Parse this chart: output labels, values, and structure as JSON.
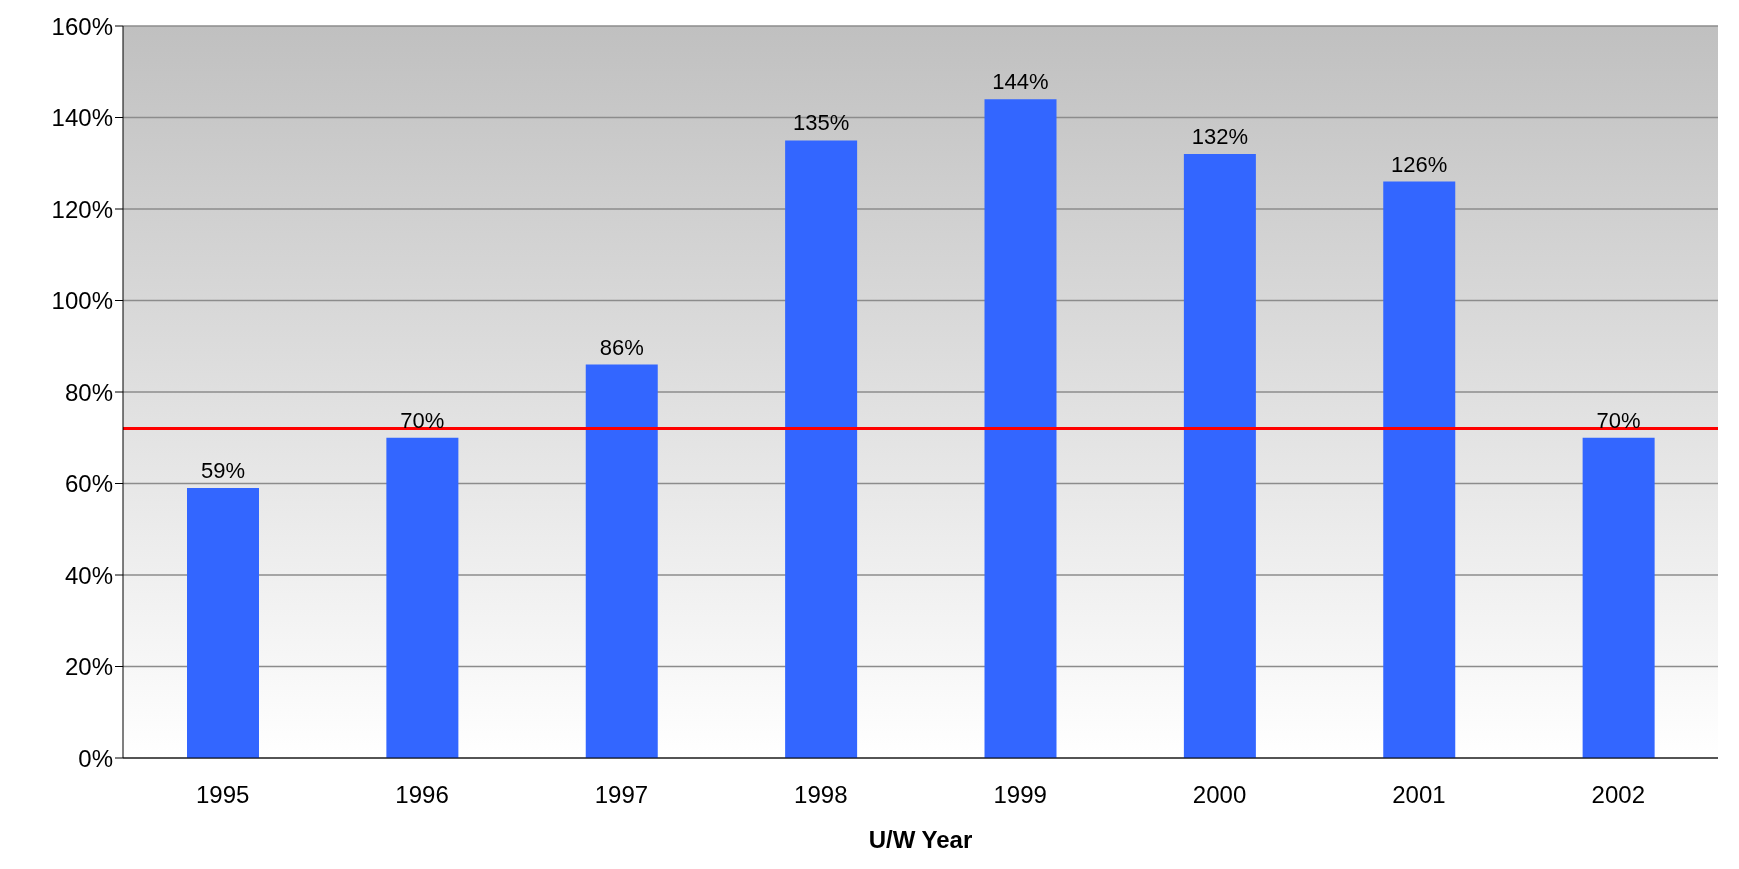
{
  "chart_data": {
    "type": "bar",
    "xlabel": "U/W Year",
    "categories": [
      "1995",
      "1996",
      "1997",
      "1998",
      "1999",
      "2000",
      "2001",
      "2002"
    ],
    "values": [
      59,
      70,
      86,
      135,
      144,
      132,
      126,
      70
    ],
    "value_labels": [
      "59%",
      "70%",
      "86%",
      "135%",
      "144%",
      "132%",
      "126%",
      "70%"
    ],
    "color": "#3366ff",
    "ylim": [
      0,
      160
    ],
    "yticks": [
      {
        "value": 0,
        "label": "0%"
      },
      {
        "value": 20,
        "label": "20%"
      },
      {
        "value": 40,
        "label": "40%"
      },
      {
        "value": 60,
        "label": "60%"
      },
      {
        "value": 80,
        "label": "80%"
      },
      {
        "value": 100,
        "label": "100%"
      },
      {
        "value": 120,
        "label": "120%"
      },
      {
        "value": 140,
        "label": "140%"
      },
      {
        "value": 160,
        "label": "160%"
      }
    ],
    "ref_lines": [
      {
        "axis": "y",
        "value": 72,
        "color": "#ff0000"
      }
    ],
    "grid": "y"
  }
}
